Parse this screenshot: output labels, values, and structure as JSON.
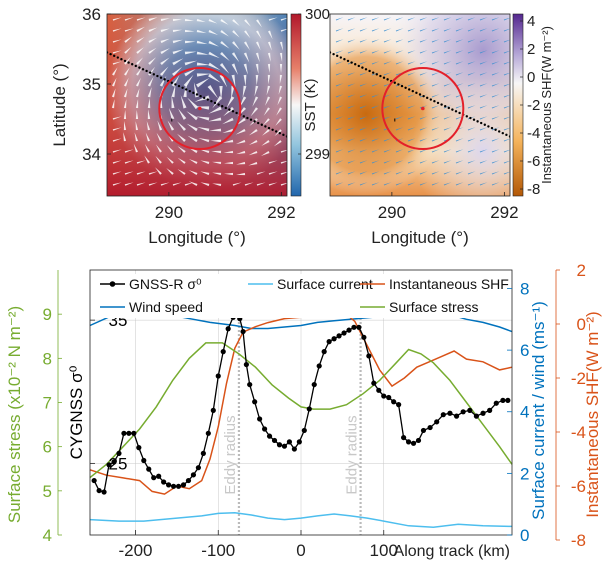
{
  "chart_data": [
    {
      "type": "heatmap",
      "panel": "sst-map",
      "xlabel": "Longitude (°)",
      "ylabel": "Latitude (°)",
      "xlim": [
        288.9,
        292.1
      ],
      "ylim": [
        33.4,
        36.0
      ],
      "x_ticks": [
        "290",
        "292"
      ],
      "y_ticks": [
        "34",
        "35",
        "36"
      ],
      "colorbar": {
        "label": "SST (K)",
        "ticks": [
          "300",
          "299"
        ],
        "range": [
          298.7,
          300
        ]
      },
      "track": [
        [
          288.9,
          35.45
        ],
        [
          292.1,
          34.25
        ]
      ],
      "eddy": {
        "center": [
          290.55,
          34.65
        ],
        "radius_lon": 0.72
      },
      "colors": {
        "warm": "#b2182b",
        "mid": "#f4a582",
        "cool": "#2166ac",
        "circle": "#e4202a"
      }
    },
    {
      "type": "heatmap",
      "panel": "shf-map",
      "xlabel": "Longitude (°)",
      "ylabel": "",
      "xlim": [
        288.9,
        292.1
      ],
      "ylim": [
        33.4,
        36.0
      ],
      "x_ticks": [
        "290",
        "292"
      ],
      "colorbar": {
        "label": "Instantaneous SHF(W m⁻²)",
        "ticks": [
          "4",
          "2",
          "0",
          "-2",
          "-4",
          "-6",
          "-8"
        ],
        "range": [
          -8.5,
          4.5
        ]
      },
      "track": [
        [
          288.9,
          35.45
        ],
        [
          292.1,
          34.25
        ]
      ],
      "eddy": {
        "center": [
          290.55,
          34.65
        ],
        "radius_lon": 0.72
      },
      "colors": {
        "positive": "#54278f",
        "zero": "#f7f7f7",
        "negative": "#b35806",
        "circle": "#e4202a"
      }
    },
    {
      "type": "line",
      "panel": "along-track",
      "xlabel": "Along track (km)",
      "xlim": [
        -255,
        255
      ],
      "x_ticks": [
        -200,
        -100,
        0,
        100
      ],
      "y_axes": {
        "cygnss": {
          "label": "CYGNSS σ⁰",
          "range": [
            20,
            38.5
          ],
          "ticks": [
            25,
            35
          ],
          "color": "#000000"
        },
        "stress": {
          "label": "Surface stress (x10⁻² N m⁻²)",
          "range": [
            4,
            10
          ],
          "ticks": [
            4,
            5,
            6,
            7,
            8,
            9
          ],
          "color": "#77ac30"
        },
        "current": {
          "label": "Surface current / wind (ms⁻¹)",
          "range": [
            0,
            8.6
          ],
          "ticks": [
            0,
            2,
            4,
            6,
            8
          ],
          "color": "#0072bd"
        },
        "shf": {
          "label": "Instantaneous SHF(W m⁻²)",
          "range": [
            -8,
            2
          ],
          "ticks": [
            -8,
            -6,
            -4,
            -2,
            0,
            2
          ],
          "color": "#d95319"
        }
      },
      "eddy_lines": {
        "x": [
          -75,
          72
        ],
        "label": "Eddy radius"
      },
      "series": [
        {
          "name": "GNSS-R σ⁰",
          "axis": "cygnss",
          "color": "#000000",
          "marker": true,
          "x": [
            -250,
            -244,
            -238,
            -232,
            -226,
            -220,
            -214,
            -208,
            -202,
            -196,
            -190,
            -184,
            -178,
            -172,
            -166,
            -160,
            -154,
            -148,
            -142,
            -136,
            -130,
            -124,
            -118,
            -112,
            -106,
            -100,
            -94,
            -88,
            -82,
            -78,
            -74,
            -70,
            -66,
            -62,
            -56,
            -50,
            -44,
            -38,
            -32,
            -26,
            -20,
            -14,
            -8,
            -2,
            4,
            10,
            16,
            22,
            28,
            34,
            40,
            46,
            52,
            58,
            64,
            70,
            76,
            82,
            88,
            94,
            100,
            106,
            112,
            118,
            124,
            130,
            136,
            142,
            148,
            156,
            164,
            172,
            180,
            188,
            196,
            204,
            212,
            220,
            228,
            236,
            244,
            250
          ],
          "y": [
            23.8,
            23.1,
            23.0,
            24.9,
            25.1,
            25.7,
            27.1,
            27.1,
            27.1,
            26.1,
            25.2,
            24.6,
            24.0,
            24.1,
            23.7,
            23.5,
            23.4,
            23.4,
            23.5,
            23.8,
            24.2,
            24.7,
            25.7,
            27.1,
            28.7,
            31.1,
            32.8,
            34.4,
            35.2,
            35.9,
            35.1,
            34.2,
            31.9,
            30.5,
            29.3,
            28.1,
            27.4,
            26.9,
            26.6,
            26.3,
            26.2,
            26.5,
            26.0,
            26.5,
            27.3,
            28.8,
            30.5,
            31.8,
            32.8,
            33.5,
            33.7,
            33.9,
            34.1,
            34.3,
            34.5,
            34.5,
            33.8,
            32.5,
            30.6,
            30.1,
            29.7,
            29.6,
            29.3,
            29.1,
            26.8,
            26.5,
            26.4,
            26.6,
            27.3,
            27.5,
            27.9,
            28.4,
            28.5,
            28.3,
            28.6,
            28.7,
            28.3,
            28.5,
            28.7,
            29.2,
            29.4,
            29.4
          ]
        },
        {
          "name": "Surface current",
          "axis": "current",
          "color": "#4dbeee",
          "marker": false,
          "x": [
            -255,
            -220,
            -190,
            -150,
            -120,
            -100,
            -80,
            -60,
            -40,
            -20,
            0,
            20,
            40,
            60,
            80,
            100,
            130,
            160,
            190,
            220,
            255
          ],
          "y": [
            0.5,
            0.45,
            0.45,
            0.55,
            0.62,
            0.7,
            0.72,
            0.65,
            0.55,
            0.5,
            0.55,
            0.62,
            0.68,
            0.62,
            0.55,
            0.45,
            0.3,
            0.25,
            0.35,
            0.3,
            0.28
          ]
        },
        {
          "name": "Instantaneous SHF",
          "axis": "shf",
          "color": "#d95319",
          "marker": false,
          "x": [
            -255,
            -235,
            -215,
            -195,
            -180,
            -165,
            -150,
            -135,
            -120,
            -110,
            -100,
            -90,
            -80,
            -70,
            -55,
            -40,
            -20,
            0,
            20,
            40,
            55,
            65,
            80,
            95,
            110,
            125,
            140,
            155,
            170,
            185,
            200,
            220,
            240,
            255
          ],
          "y": [
            -5.4,
            -5.6,
            -5.7,
            -5.8,
            -6.2,
            -6.3,
            -6.0,
            -6.1,
            -5.8,
            -5.0,
            -3.8,
            -2.2,
            -0.9,
            -0.3,
            -0.1,
            0.05,
            0.2,
            0.25,
            0.35,
            0.4,
            0.35,
            0.1,
            -0.8,
            -1.7,
            -2.3,
            -2.0,
            -1.6,
            -1.4,
            -1.2,
            -1.0,
            -1.3,
            -1.4,
            -1.7,
            -1.6
          ]
        },
        {
          "name": "Wind speed",
          "axis": "current",
          "color": "#0072bd",
          "marker": false,
          "x": [
            -255,
            -230,
            -200,
            -170,
            -140,
            -110,
            -80,
            -60,
            -40,
            -20,
            0,
            20,
            40,
            60,
            80,
            100,
            120,
            140,
            160,
            180,
            200,
            220,
            240,
            255
          ],
          "y": [
            6.8,
            7.1,
            7.3,
            7.2,
            7.05,
            6.9,
            6.8,
            6.7,
            6.7,
            6.75,
            6.8,
            6.9,
            6.95,
            7.0,
            7.05,
            7.1,
            7.25,
            7.3,
            7.25,
            7.15,
            7.0,
            6.9,
            6.75,
            6.6
          ]
        },
        {
          "name": "Surface stress",
          "axis": "stress",
          "color": "#77ac30",
          "marker": false,
          "x": [
            -255,
            -235,
            -215,
            -195,
            -175,
            -155,
            -135,
            -115,
            -95,
            -75,
            -55,
            -35,
            -15,
            0,
            15,
            35,
            55,
            75,
            95,
            115,
            130,
            145,
            160,
            180,
            200,
            220,
            240,
            255
          ],
          "y": [
            5.3,
            5.6,
            6.0,
            6.4,
            6.9,
            7.5,
            8.0,
            8.35,
            8.35,
            8.1,
            7.8,
            7.4,
            7.1,
            6.9,
            6.85,
            6.85,
            6.95,
            7.2,
            7.5,
            7.9,
            8.2,
            8.1,
            7.9,
            7.5,
            7.0,
            6.5,
            6.0,
            5.6
          ]
        }
      ],
      "colors": {
        "grid": "#c8c8c8",
        "eddy_line": "#bbbbbb"
      }
    }
  ]
}
